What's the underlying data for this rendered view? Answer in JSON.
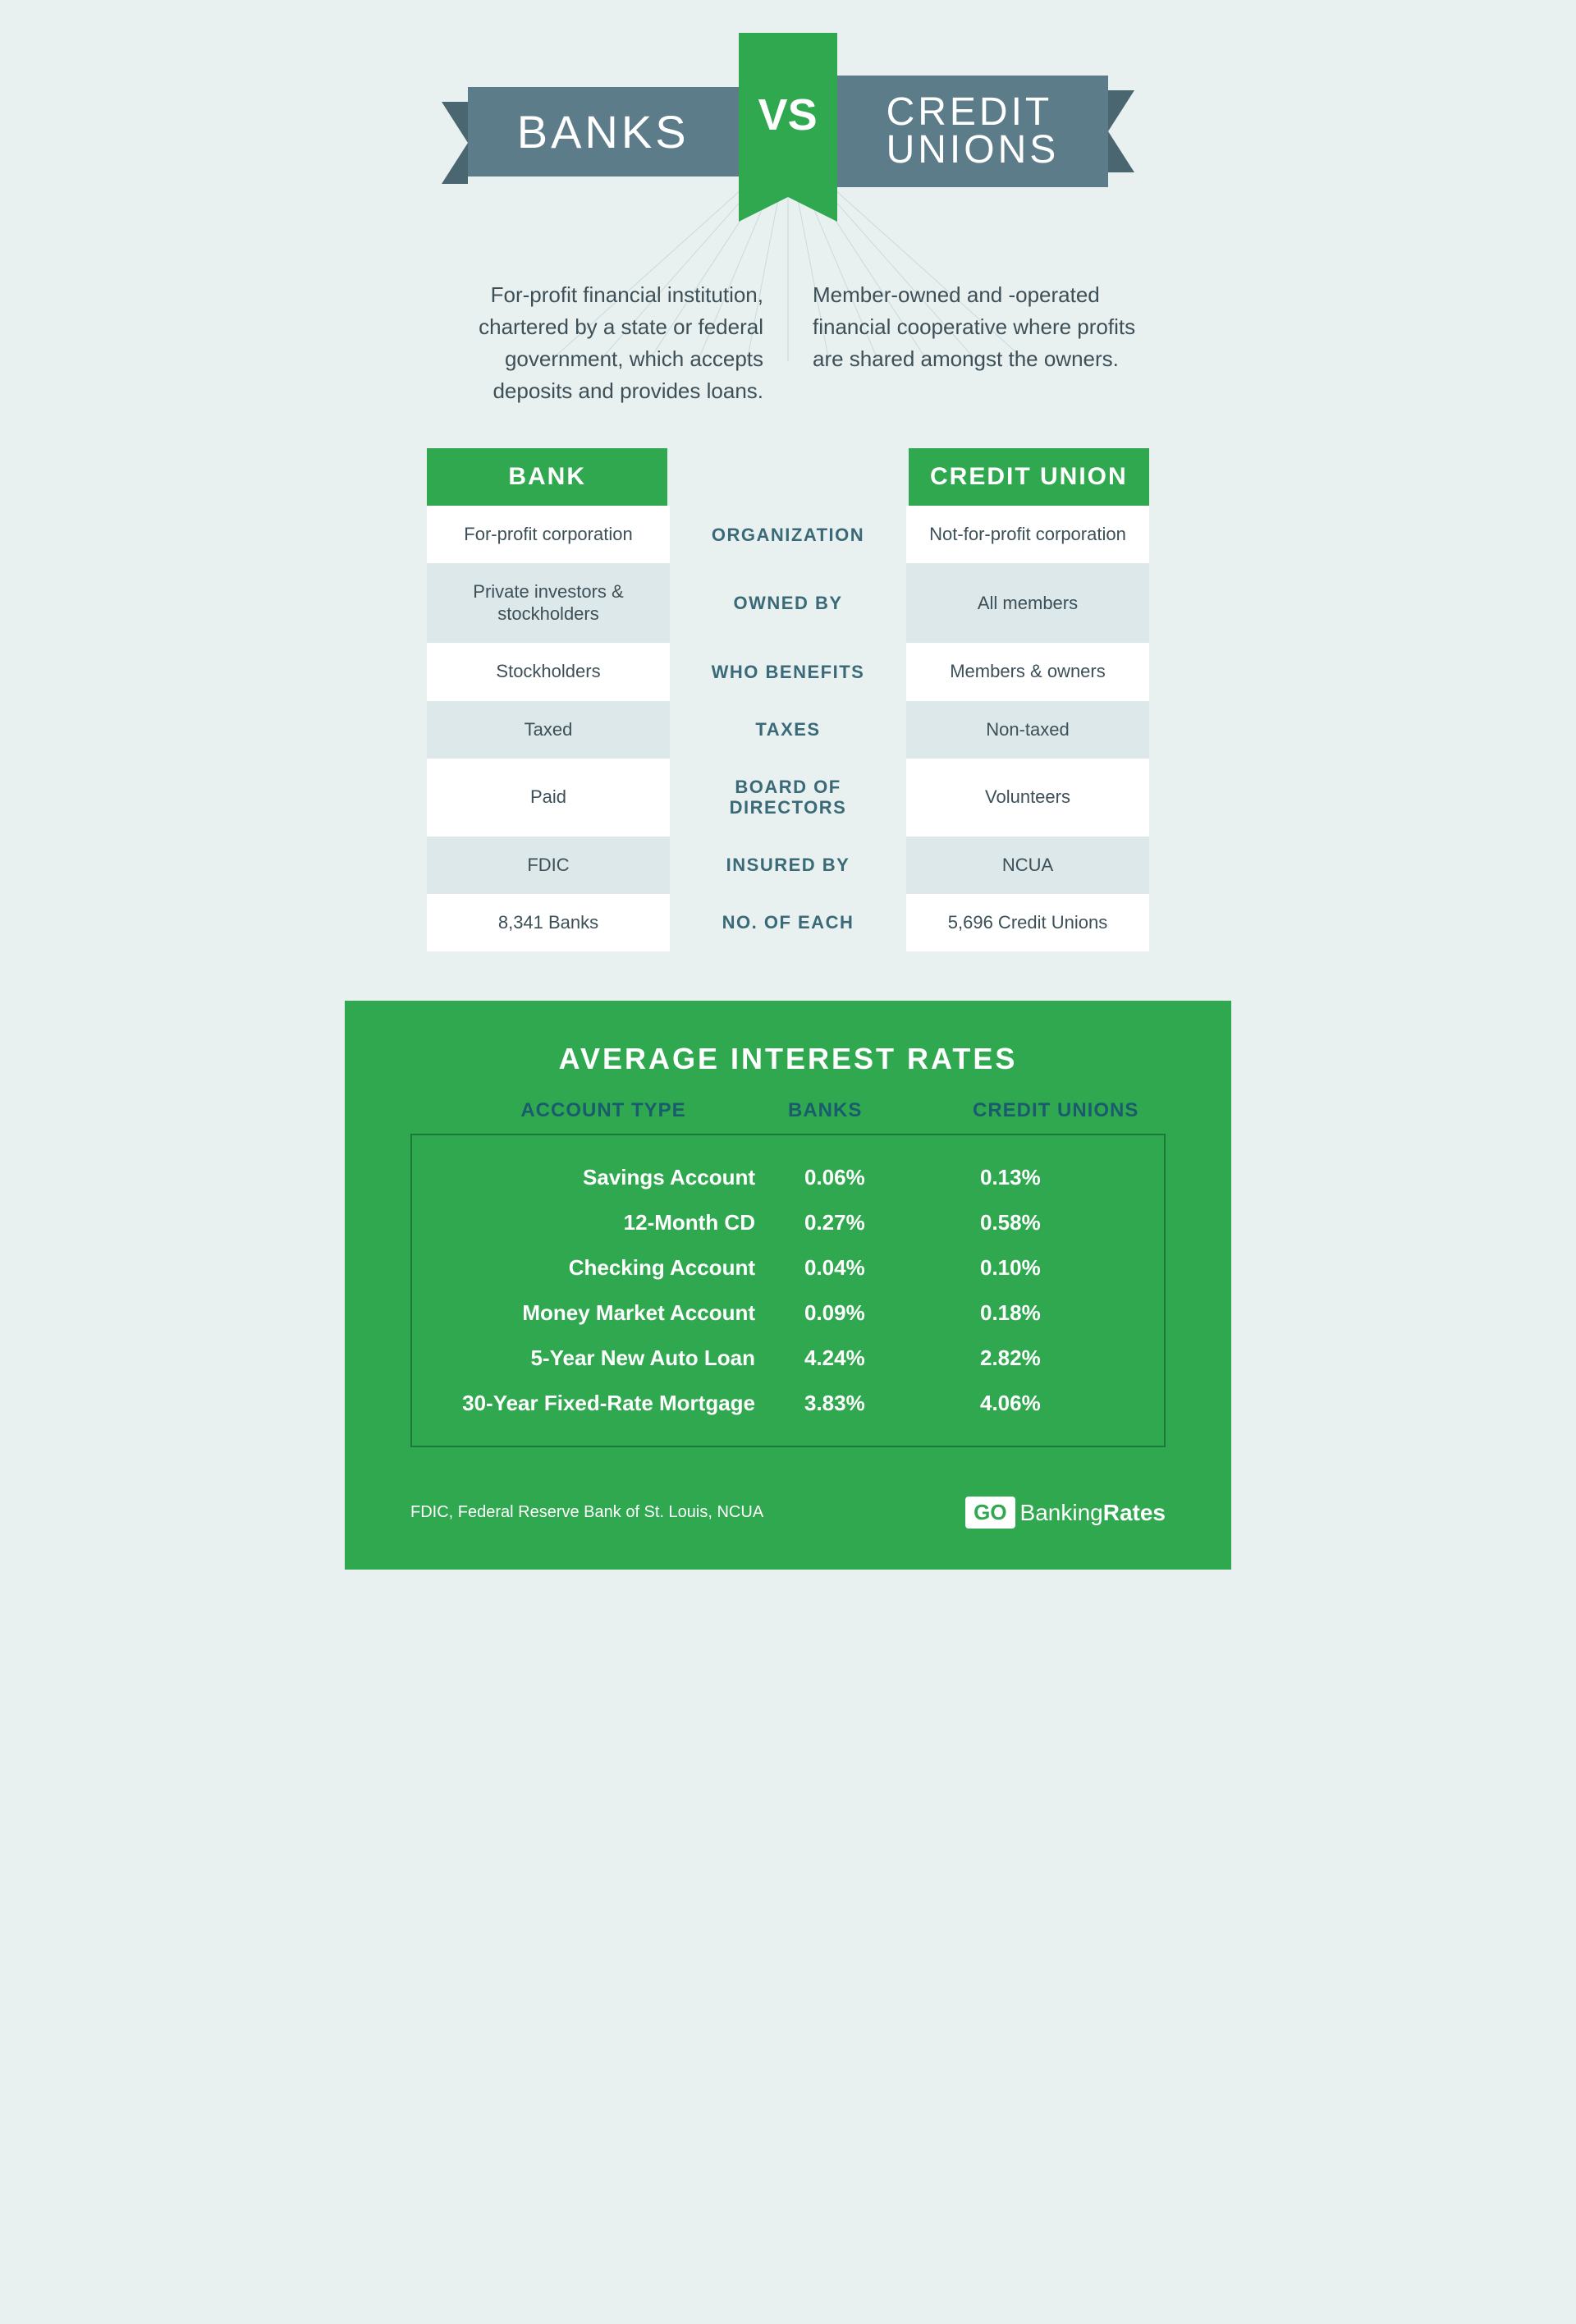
{
  "colors": {
    "page_bg": "#e8f0f0",
    "banner_bg": "#5b7c88",
    "banner_shadow": "#4a6671",
    "accent_green": "#2fa84f",
    "text_dark": "#3d4f57",
    "text_teal": "#3a6a78",
    "row_alt": "#dce8ea",
    "rates_head_text": "#1a5c6d",
    "rates_border": "#1a7a3a"
  },
  "header": {
    "left": "BANKS",
    "vs": "VS",
    "right_line1": "CREDIT",
    "right_line2": "UNIONS"
  },
  "descriptions": {
    "banks": "For-profit financial institution, chartered by a state or federal government, which accepts deposits and provides loans.",
    "cu": "Member-owned and -operated financial cooperative where profits are shared amongst the owners."
  },
  "compare": {
    "header_left": "BANK",
    "header_right": "CREDIT UNION",
    "rows": [
      {
        "left": "For-profit corporation",
        "mid": "ORGANIZATION",
        "right": "Not-for-profit corporation"
      },
      {
        "left": "Private investors & stockholders",
        "mid": "OWNED BY",
        "right": "All members"
      },
      {
        "left": "Stockholders",
        "mid": "WHO BENEFITS",
        "right": "Members & owners"
      },
      {
        "left": "Taxed",
        "mid": "TAXES",
        "right": "Non-taxed"
      },
      {
        "left": "Paid",
        "mid": "BOARD OF DIRECTORS",
        "right": "Volunteers"
      },
      {
        "left": "FDIC",
        "mid": "INSURED BY",
        "right": "NCUA"
      },
      {
        "left": "8,341 Banks",
        "mid": "NO. OF EACH",
        "right": "5,696 Credit Unions"
      }
    ]
  },
  "rates": {
    "title": "AVERAGE INTEREST RATES",
    "head_type": "ACCOUNT TYPE",
    "head_banks": "BANKS",
    "head_cu": "CREDIT UNIONS",
    "rows": [
      {
        "label": "Savings Account",
        "banks": "0.06%",
        "cu": "0.13%"
      },
      {
        "label": "12-Month CD",
        "banks": "0.27%",
        "cu": "0.58%"
      },
      {
        "label": "Checking Account",
        "banks": "0.04%",
        "cu": "0.10%"
      },
      {
        "label": "Money Market Account",
        "banks": "0.09%",
        "cu": "0.18%"
      },
      {
        "label": "5-Year New Auto Loan",
        "banks": "4.24%",
        "cu": "2.82%"
      },
      {
        "label": "30-Year Fixed-Rate Mortgage",
        "banks": "3.83%",
        "cu": "4.06%"
      }
    ]
  },
  "footer": {
    "sources": "FDIC, Federal Reserve Bank of St. Louis, NCUA",
    "logo_box": "GO",
    "logo_text_a": "Banking",
    "logo_text_b": "Rates"
  }
}
